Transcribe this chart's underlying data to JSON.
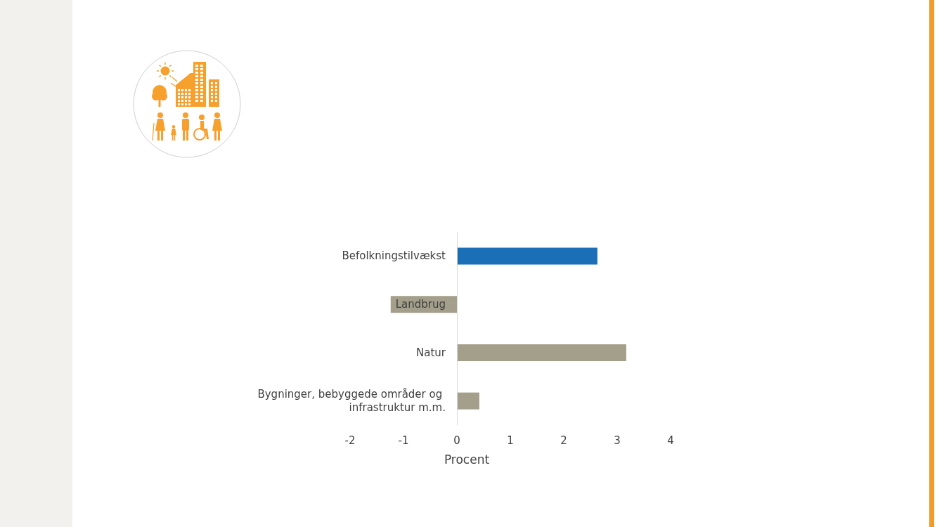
{
  "chart_data": {
    "type": "bar",
    "orientation": "horizontal",
    "categories": [
      "Befolkningstilvækst",
      "Landbrug",
      "Natur",
      "Bygninger, bebyggede områder og infrastruktur m.m."
    ],
    "values": [
      2.63,
      -1.24,
      3.17,
      0.42
    ],
    "colors": [
      "#1b6fb6",
      "#a39f8b",
      "#a39f8b",
      "#a39f8b"
    ],
    "xlim": [
      -2,
      4
    ],
    "xticks": [
      -2,
      -1,
      0,
      1,
      2,
      3,
      4
    ],
    "xlabel": "Procent"
  }
}
